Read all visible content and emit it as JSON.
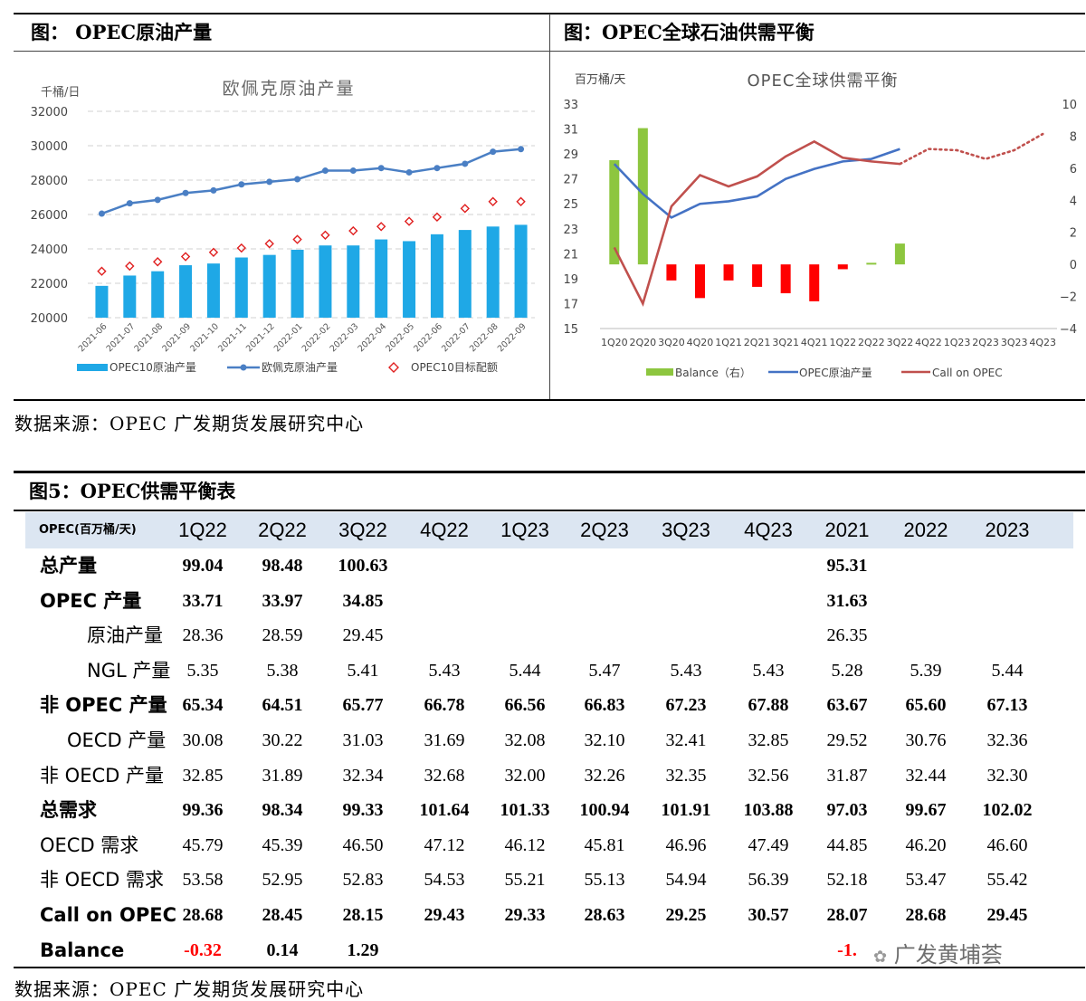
{
  "panel1": {
    "title": "图：  OPEC原油产量",
    "chart_data": {
      "type": "bar",
      "title": "欧佩克原油产量",
      "ylabel": "千桶/日",
      "ylim": [
        20000,
        32000
      ],
      "yticks": [
        "32000",
        "30000",
        "28000",
        "26000",
        "24000",
        "22000",
        "20000"
      ],
      "categories": [
        "2021-06",
        "2021-07",
        "2021-08",
        "2021-09",
        "2021-10",
        "2021-11",
        "2021-12",
        "2022-01",
        "2022-02",
        "2022-03",
        "2022-04",
        "2022-05",
        "2022-06",
        "2022-07",
        "2022-08",
        "2022-09"
      ],
      "series": [
        {
          "name": "OPEC10原油产量",
          "type": "bar",
          "color": "#1fa8e6",
          "values": [
            21850,
            22450,
            22700,
            23050,
            23150,
            23500,
            23650,
            23950,
            24200,
            24200,
            24550,
            24450,
            24850,
            25100,
            25300,
            25400
          ]
        },
        {
          "name": "欧佩克原油产量",
          "type": "line",
          "color": "#4a7fc4",
          "values": [
            26050,
            26650,
            26850,
            27250,
            27400,
            27750,
            27900,
            28050,
            28550,
            28550,
            28700,
            28450,
            28700,
            28950,
            29650,
            29800
          ]
        },
        {
          "name": "OPEC10目标配额",
          "type": "scatter",
          "color": "#e02020",
          "values": [
            22700,
            23000,
            23250,
            23550,
            23800,
            24050,
            24300,
            24550,
            24800,
            25050,
            25300,
            25600,
            25850,
            26350,
            26750,
            26750
          ]
        }
      ],
      "legend": "bottom"
    }
  },
  "panel2": {
    "title": "图：OPEC全球石油供需平衡",
    "chart_data": {
      "type": "line",
      "title": "OPEC全球供需平衡",
      "ylabel": "百万桶/天",
      "ylim": [
        15,
        33
      ],
      "y2lim": [
        -4,
        10
      ],
      "yticks": [
        "33",
        "31",
        "29",
        "27",
        "25",
        "23",
        "21",
        "19",
        "17",
        "15"
      ],
      "y2ticks": [
        "10",
        "8",
        "6",
        "4",
        "2",
        "0",
        "−2",
        "−4"
      ],
      "categories": [
        "1Q20",
        "2Q20",
        "3Q20",
        "4Q20",
        "1Q21",
        "2Q21",
        "3Q21",
        "4Q21",
        "1Q22",
        "2Q22",
        "3Q22",
        "4Q22",
        "1Q23",
        "2Q23",
        "3Q23",
        "4Q23"
      ],
      "series": [
        {
          "name": "Balance（右）",
          "axis": "right",
          "values": [
            6.5,
            8.5,
            -1.0,
            -2.1,
            -1.0,
            -1.4,
            -1.8,
            -2.3,
            -0.3,
            0.1,
            1.3,
            null,
            null,
            null,
            null,
            null
          ]
        },
        {
          "name": "OPEC原油产量",
          "axis": "left",
          "color": "#4472c4",
          "values": [
            28.2,
            25.8,
            23.9,
            25.0,
            25.2,
            25.6,
            27.0,
            27.8,
            28.4,
            28.6,
            29.4,
            null,
            null,
            null,
            null,
            null
          ]
        },
        {
          "name": "Call  on OPEC",
          "axis": "left",
          "color": "#c0504d",
          "values": [
            21.5,
            17.0,
            24.8,
            27.3,
            26.4,
            27.2,
            28.8,
            30.0,
            28.7,
            28.4,
            28.2,
            29.4,
            29.3,
            28.6,
            29.3,
            30.6
          ],
          "dotted_from_index": 10
        }
      ],
      "legend": "bottom"
    }
  },
  "source1": "数据来源：OPEC  广发期货发展研究中心",
  "table": {
    "title": "图5：OPEC供需平衡表",
    "header_label": "OPEC(百万桶/天)",
    "columns": [
      "1Q22",
      "2Q22",
      "3Q22",
      "4Q22",
      "1Q23",
      "2Q23",
      "3Q23",
      "4Q23",
      "2021",
      "2022",
      "2023"
    ],
    "rows": [
      {
        "label": "总产量",
        "bold": true,
        "indent": 0,
        "values": [
          "99.04",
          "98.48",
          "100.63",
          "",
          "",
          "",
          "",
          "",
          "95.31",
          "",
          ""
        ]
      },
      {
        "label": "OPEC 产量",
        "bold": true,
        "indent": 0,
        "values": [
          "33.71",
          "33.97",
          "34.85",
          "",
          "",
          "",
          "",
          "",
          "31.63",
          "",
          ""
        ]
      },
      {
        "label": "原油产量",
        "bold": false,
        "indent": 2,
        "values": [
          "28.36",
          "28.59",
          "29.45",
          "",
          "",
          "",
          "",
          "",
          "26.35",
          "",
          ""
        ]
      },
      {
        "label": "NGL 产量",
        "bold": false,
        "indent": 2,
        "values": [
          "5.35",
          "5.38",
          "5.41",
          "5.43",
          "5.44",
          "5.47",
          "5.43",
          "5.43",
          "5.28",
          "5.39",
          "5.44"
        ]
      },
      {
        "label": "非 OPEC 产量",
        "bold": true,
        "indent": 0,
        "values": [
          "65.34",
          "64.51",
          "65.77",
          "66.78",
          "66.56",
          "66.83",
          "67.23",
          "67.88",
          "63.67",
          "65.60",
          "67.13"
        ]
      },
      {
        "label": "OECD 产量",
        "bold": false,
        "indent": 1,
        "values": [
          "30.08",
          "30.22",
          "31.03",
          "31.69",
          "32.08",
          "32.10",
          "32.41",
          "32.85",
          "29.52",
          "30.76",
          "32.36"
        ]
      },
      {
        "label": "非 OECD 产量",
        "bold": false,
        "indent": 0,
        "values": [
          "32.85",
          "31.89",
          "32.34",
          "32.68",
          "32.00",
          "32.26",
          "32.35",
          "32.56",
          "31.87",
          "32.44",
          "32.30"
        ]
      },
      {
        "label": "总需求",
        "bold": true,
        "indent": 0,
        "values": [
          "99.36",
          "98.34",
          "99.33",
          "101.64",
          "101.33",
          "100.94",
          "101.91",
          "103.88",
          "97.03",
          "99.67",
          "102.02"
        ]
      },
      {
        "label": "OECD 需求",
        "bold": false,
        "indent": 0,
        "values": [
          "45.79",
          "45.39",
          "46.50",
          "47.12",
          "46.12",
          "45.81",
          "46.96",
          "47.49",
          "44.85",
          "46.20",
          "46.60"
        ]
      },
      {
        "label": "非 OECD 需求",
        "bold": false,
        "indent": 0,
        "values": [
          "53.58",
          "52.95",
          "52.83",
          "54.53",
          "55.21",
          "55.13",
          "54.94",
          "56.39",
          "52.18",
          "53.47",
          "55.42"
        ]
      },
      {
        "label": "Call on OPEC",
        "bold": true,
        "indent": 0,
        "values": [
          "28.68",
          "28.45",
          "28.15",
          "29.43",
          "29.33",
          "28.63",
          "29.25",
          "30.57",
          "28.07",
          "28.68",
          "29.45"
        ]
      },
      {
        "label": "Balance",
        "bold": true,
        "indent": 0,
        "values": [
          "-0.32",
          "0.14",
          "1.29",
          "",
          "",
          "",
          "",
          "",
          "-1.",
          "",
          ""
        ],
        "red": [
          true,
          false,
          false,
          false,
          false,
          false,
          false,
          false,
          true,
          false,
          false
        ]
      }
    ]
  },
  "source2": "数据来源：OPEC  广发期货发展研究中心",
  "watermark": "广发黄埔荟",
  "colors": {
    "bar": "#1fa8e6",
    "line_blue": "#4472c4",
    "line_red": "#c0504d",
    "balance_green": "#8dc63f",
    "balance_red": "#ff0000",
    "table_header": "#dce6f2"
  }
}
